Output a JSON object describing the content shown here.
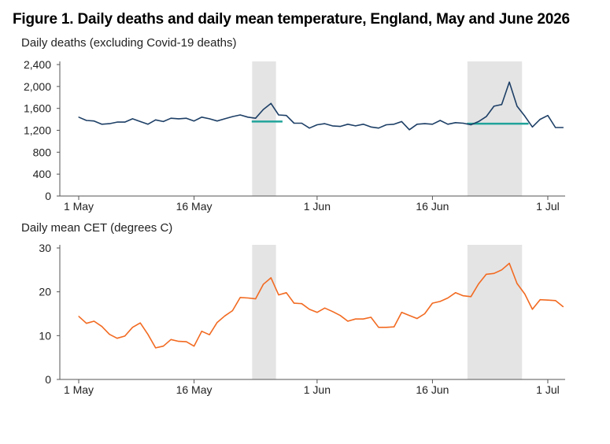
{
  "title": "Figure 1. Daily deaths and daily mean temperature, England, May and June 2026",
  "colors": {
    "deaths_line": "#1d3f66",
    "temperature_line": "#f26a21",
    "baseline": "#20a39a",
    "shade": "#e4e4e4",
    "axis": "#555555"
  },
  "chart_data": [
    {
      "type": "line",
      "title": "Daily deaths (excluding Covid-19 deaths)",
      "x_start_label": "1 May",
      "xtick_labels": [
        "1 May",
        "16 May",
        "1 Jun",
        "16 Jun",
        "1 Jul"
      ],
      "xtick_days": [
        1,
        16,
        32,
        47,
        62
      ],
      "ylim": [
        0,
        2400
      ],
      "yticks": [
        0,
        400,
        800,
        1200,
        1600,
        2000,
        2400
      ],
      "ytick_labels": [
        "0",
        "400",
        "800",
        "1,200",
        "1,600",
        "2,000",
        "2,400"
      ],
      "shaded_day_ranges": [
        [
          24,
          27
        ],
        [
          52,
          59
        ]
      ],
      "series": [
        {
          "x": [
            1,
            2,
            3,
            4,
            5,
            6,
            7,
            8,
            9,
            10,
            11,
            12,
            13,
            14,
            15,
            16,
            17,
            18,
            19,
            20,
            21,
            22,
            23,
            24,
            25,
            26,
            27,
            28,
            29,
            30,
            31,
            32,
            33,
            34,
            35,
            36,
            37,
            38,
            39,
            40,
            41,
            42,
            43,
            44,
            45,
            46,
            47,
            48,
            49,
            50,
            51,
            52,
            53,
            54,
            55,
            56,
            57,
            58,
            59,
            60,
            61,
            62,
            63,
            64
          ],
          "values": [
            1440,
            1380,
            1370,
            1310,
            1320,
            1350,
            1350,
            1410,
            1360,
            1310,
            1390,
            1360,
            1420,
            1410,
            1420,
            1370,
            1440,
            1410,
            1370,
            1410,
            1450,
            1480,
            1440,
            1420,
            1580,
            1690,
            1480,
            1470,
            1330,
            1330,
            1240,
            1300,
            1320,
            1280,
            1270,
            1310,
            1280,
            1310,
            1260,
            1240,
            1300,
            1310,
            1360,
            1210,
            1310,
            1320,
            1310,
            1380,
            1310,
            1340,
            1330,
            1300,
            1360,
            1450,
            1640,
            1670,
            2080,
            1640,
            1460,
            1260,
            1400,
            1470,
            1250,
            1250
          ]
        }
      ],
      "baselines": [
        {
          "days": [
            24,
            27
          ],
          "value": 1360
        },
        {
          "days": [
            52,
            59
          ],
          "value": 1320
        }
      ]
    },
    {
      "type": "line",
      "title": "Daily mean CET (degrees C)",
      "xtick_labels": [
        "1 May",
        "16 May",
        "1 Jun",
        "16 Jun",
        "1 Jul"
      ],
      "xtick_days": [
        1,
        16,
        32,
        47,
        62
      ],
      "ylim": [
        0,
        30
      ],
      "yticks": [
        0,
        10,
        20,
        30
      ],
      "ytick_labels": [
        "0",
        "10",
        "20",
        "30"
      ],
      "shaded_day_ranges": [
        [
          24,
          27
        ],
        [
          52,
          59
        ]
      ],
      "series": [
        {
          "x": [
            1,
            2,
            3,
            4,
            5,
            6,
            7,
            8,
            9,
            10,
            11,
            12,
            13,
            14,
            15,
            16,
            17,
            18,
            19,
            20,
            21,
            22,
            23,
            24,
            25,
            26,
            27,
            28,
            29,
            30,
            31,
            32,
            33,
            34,
            35,
            36,
            37,
            38,
            39,
            40,
            41,
            42,
            43,
            44,
            45,
            46,
            47,
            48,
            49,
            50,
            51,
            52,
            53,
            54,
            55,
            56,
            57,
            58,
            59,
            60,
            61,
            62,
            63,
            64
          ],
          "values": [
            14.4,
            12.8,
            13.3,
            12.1,
            10.3,
            9.4,
            9.9,
            11.9,
            12.9,
            10.3,
            7.2,
            7.6,
            9.1,
            8.7,
            8.6,
            7.6,
            11.0,
            10.2,
            13.0,
            14.5,
            15.7,
            18.7,
            18.6,
            18.4,
            21.7,
            23.2,
            19.3,
            19.8,
            17.4,
            17.3,
            16.0,
            15.3,
            16.3,
            15.5,
            14.6,
            13.3,
            13.8,
            13.8,
            14.2,
            11.9,
            11.9,
            12.0,
            15.3,
            14.6,
            13.9,
            15.0,
            17.4,
            17.8,
            18.6,
            19.8,
            19.1,
            18.9,
            21.8,
            24.0,
            24.2,
            25.0,
            26.5,
            21.9,
            19.5,
            16.0,
            18.2,
            18.1,
            18.0,
            16.6
          ]
        }
      ]
    }
  ]
}
